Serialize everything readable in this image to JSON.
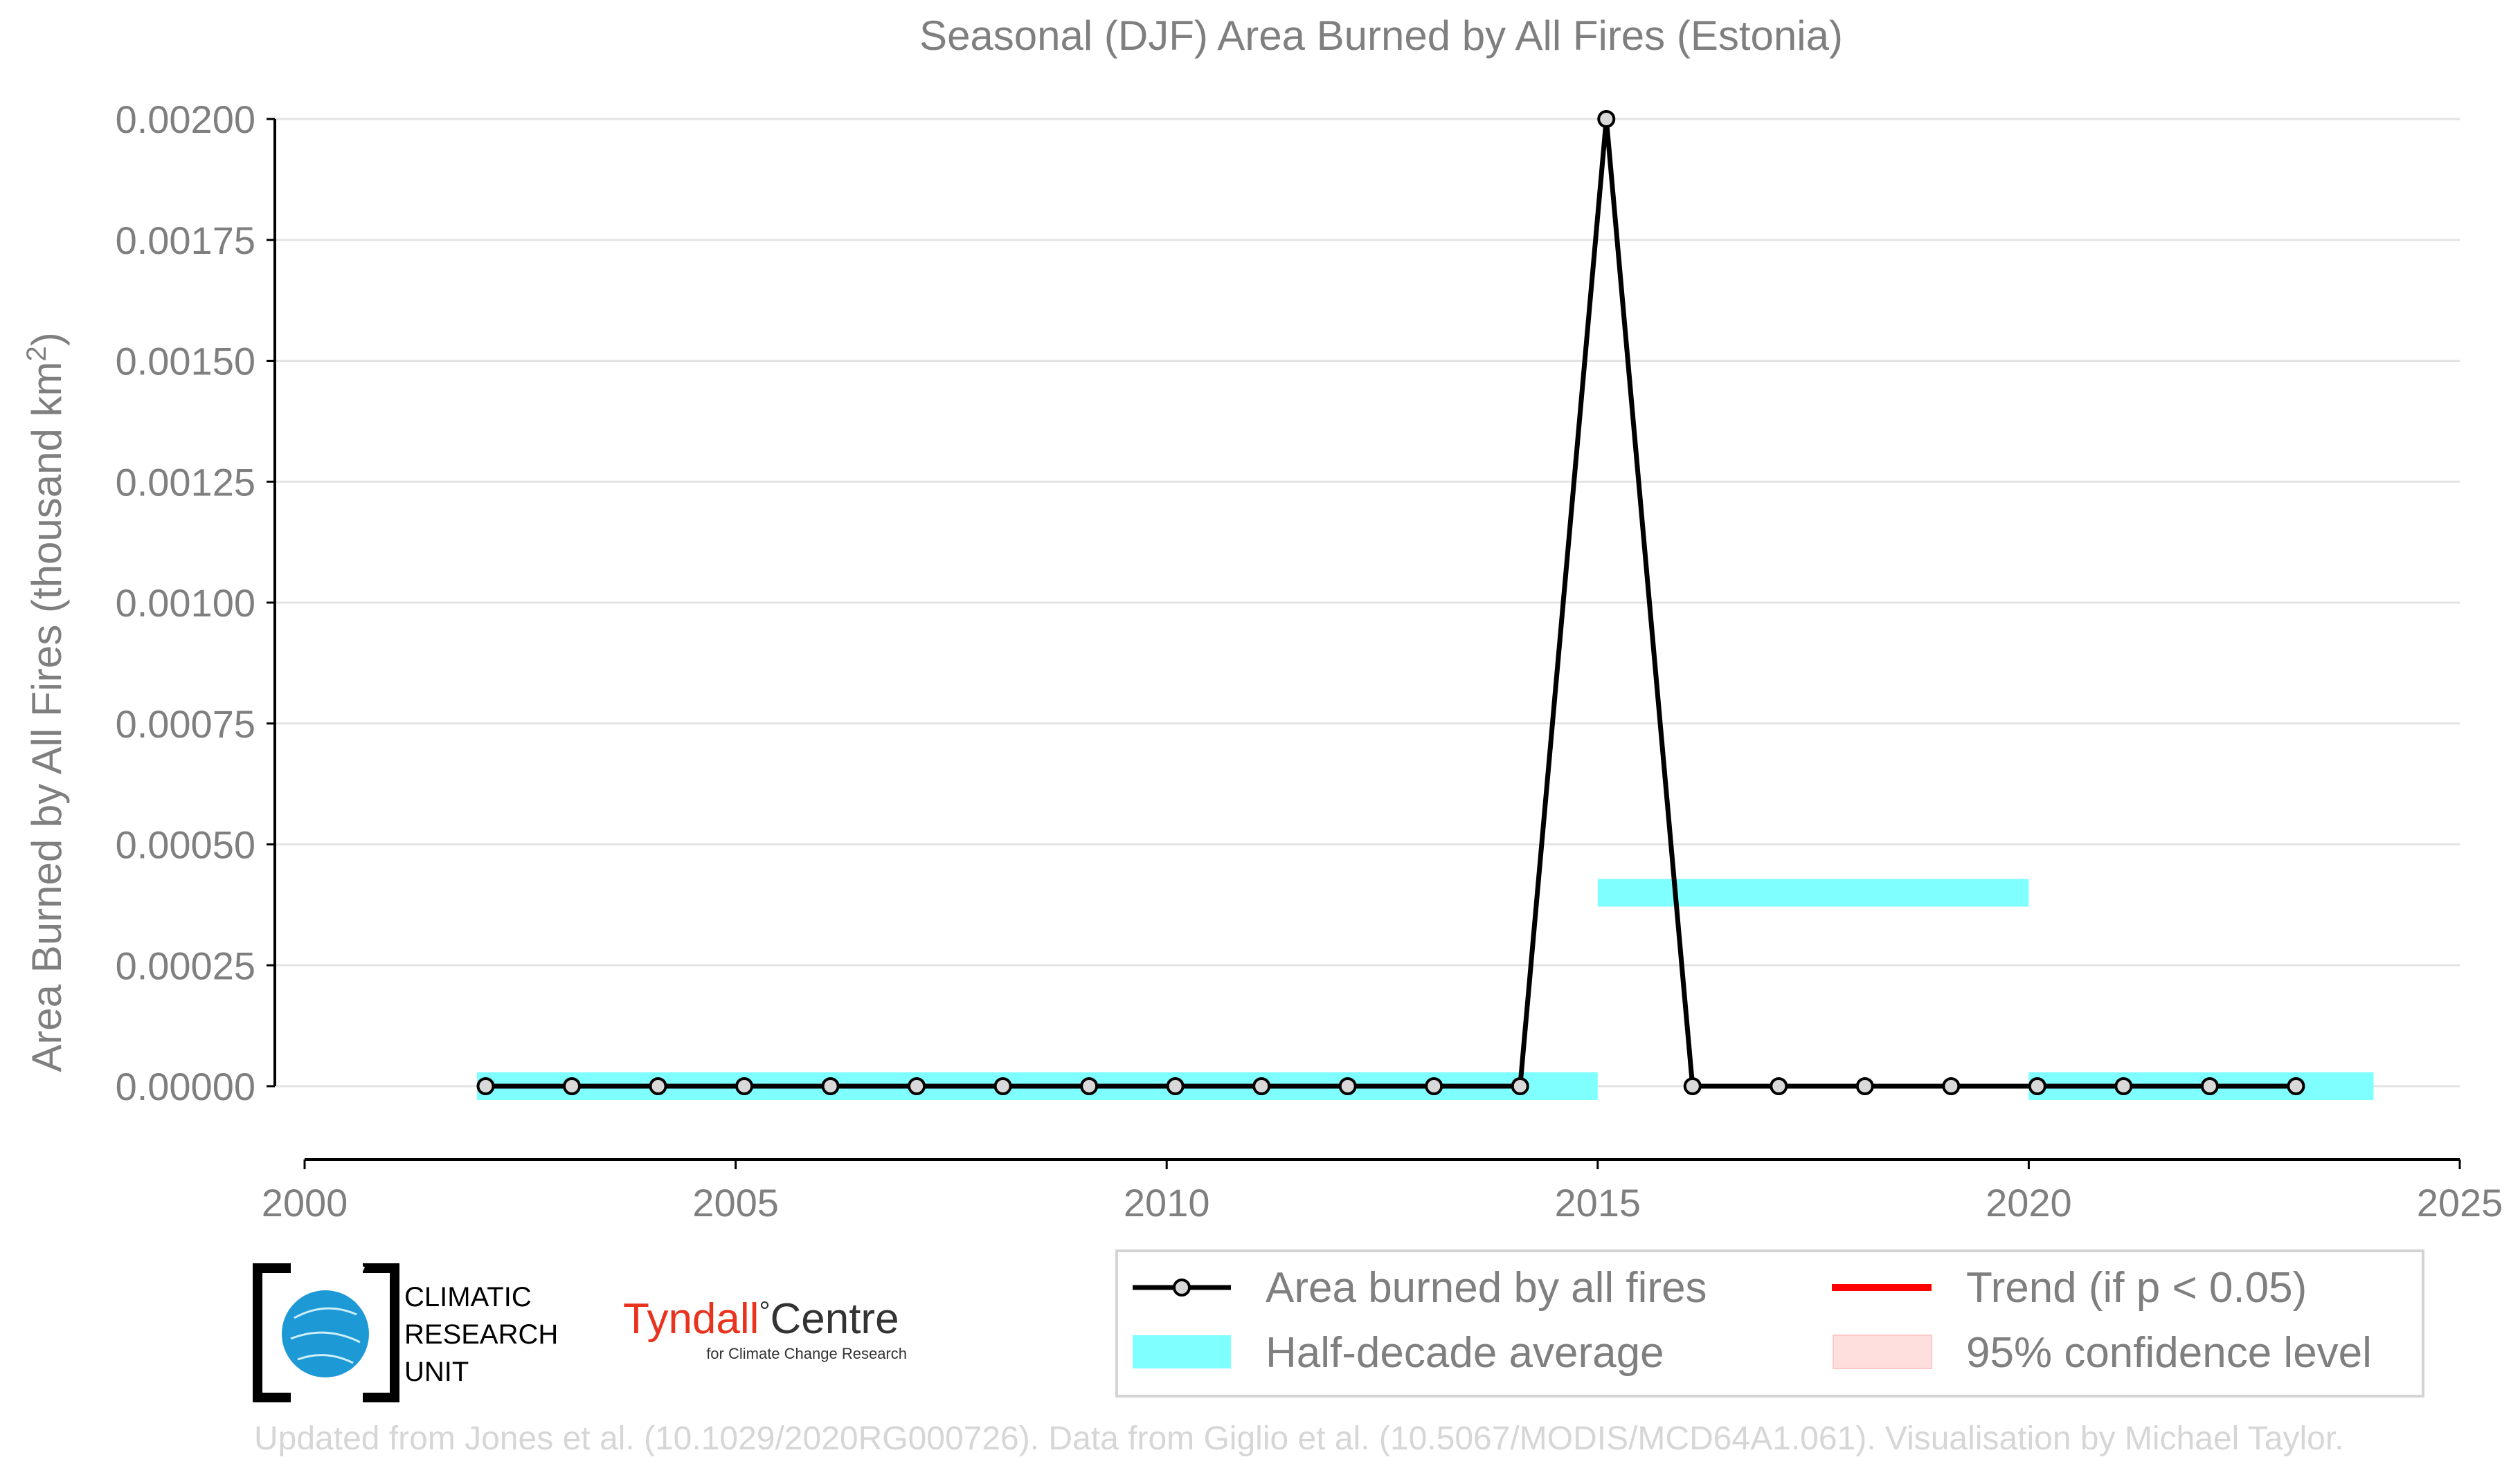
{
  "chart_data": {
    "type": "line",
    "title": "Seasonal (DJF) Area Burned by All Fires (Estonia)",
    "ylabel": "Area Burned by All Fires (thousand km",
    "ylabel_sup": "2",
    "ylabel_close": ")",
    "xlim": [
      2000,
      2025
    ],
    "ylim": [
      -0.00015,
      0.002
    ],
    "x_ticks": [
      "2000",
      "2005",
      "2010",
      "2015",
      "2020",
      "2025"
    ],
    "y_ticks": [
      "0.00000",
      "0.00025",
      "0.00050",
      "0.00075",
      "0.00100",
      "0.00125",
      "0.00150",
      "0.00175",
      "0.00200"
    ],
    "grid": "horizontal",
    "series": [
      {
        "name": "Area burned by all fires",
        "color": "#000000",
        "x": [
          2002.1,
          2003.1,
          2004.1,
          2005.1,
          2006.1,
          2007.1,
          2008.1,
          2009.1,
          2010.1,
          2011.1,
          2012.1,
          2013.1,
          2014.1,
          2015.1,
          2016.1,
          2017.1,
          2018.1,
          2019.1,
          2020.1,
          2021.1,
          2022.1,
          2023.1
        ],
        "y": [
          0,
          0,
          0,
          0,
          0,
          0,
          0,
          0,
          0,
          0,
          0,
          0,
          0,
          0.002,
          0,
          0,
          0,
          0,
          0,
          0,
          0,
          0
        ]
      }
    ],
    "half_decade_average": {
      "name": "Half-decade average",
      "color": "#7fffff",
      "segments": [
        {
          "x_start": 2002,
          "x_end": 2015,
          "y": 0
        },
        {
          "x_start": 2015,
          "x_end": 2020,
          "y": 0.0004
        },
        {
          "x_start": 2020,
          "x_end": 2024,
          "y": 0
        }
      ]
    },
    "legend": {
      "position": "bottom-right",
      "entries": [
        {
          "label": "Area burned by all fires",
          "color": "#000000",
          "style": "line-marker"
        },
        {
          "label": "Trend (if p < 0.05)",
          "color": "#ff0000",
          "style": "line"
        },
        {
          "label": "Half-decade average",
          "color": "#7fffff",
          "style": "band"
        },
        {
          "label": "95% confidence level",
          "color": "#ffdede",
          "style": "band"
        }
      ]
    }
  },
  "logos": {
    "cru": [
      "CLIMATIC",
      "RESEARCH",
      "UNIT"
    ],
    "tyndall_main": "Tyndall",
    "tyndall_degree": "°",
    "tyndall_centre": "Centre",
    "tyndall_sub": "for Climate Change Research"
  },
  "credit": "Updated from Jones et al. (10.1029/2020RG000726). Data from Giglio et al. (10.5067/MODIS/MCD64A1.061). Visualisation by Michael Taylor."
}
